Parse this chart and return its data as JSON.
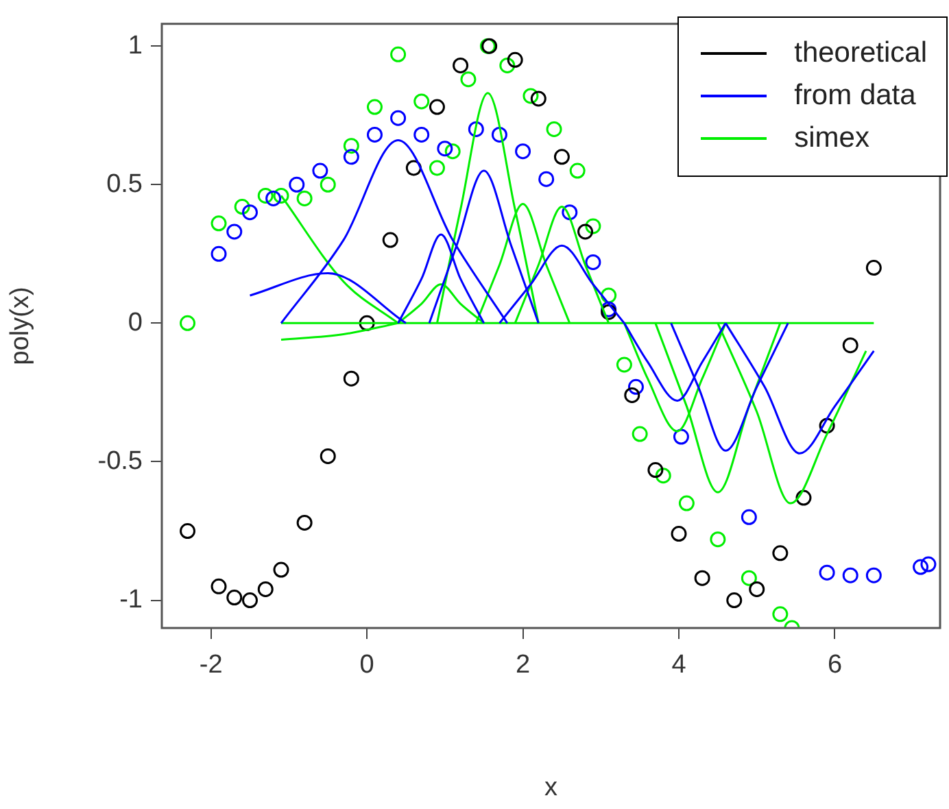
{
  "chart_data": {
    "type": "scatter",
    "xlabel": "x",
    "ylabel": "poly(x)",
    "xlim": [
      -2.63,
      7.35
    ],
    "ylim": [
      -1.1,
      1.08
    ],
    "xticks": [
      -2,
      0,
      2,
      4,
      6
    ],
    "yticks": [
      -1,
      -0.5,
      0,
      0.5,
      1
    ],
    "grid": false,
    "legend": "top right",
    "series": [
      {
        "type": "line",
        "color": "#0000ff",
        "x": [
          -1.5,
          -0.5,
          0.5
        ],
        "values": [
          0.1,
          0.18,
          0
        ]
      },
      {
        "type": "line",
        "color": "#0000ff",
        "x": [
          -1.1,
          -0.3,
          0.4,
          1.1,
          1.8
        ],
        "values": [
          0,
          0.3,
          0.66,
          0.3,
          0
        ]
      },
      {
        "type": "line",
        "color": "#0000ff",
        "x": [
          0.4,
          0.7,
          0.95,
          1.2,
          1.5
        ],
        "values": [
          0,
          0.16,
          0.32,
          0.16,
          0
        ]
      },
      {
        "type": "line",
        "color": "#0000ff",
        "x": [
          0.8,
          1.15,
          1.5,
          1.85,
          2.2
        ],
        "values": [
          0,
          0.28,
          0.55,
          0.28,
          0
        ]
      },
      {
        "type": "line",
        "color": "#0000ff",
        "x": [
          1.7,
          2.1,
          2.5,
          2.9,
          3.3
        ],
        "values": [
          0,
          0.14,
          0.28,
          0.14,
          0
        ]
      },
      {
        "type": "line",
        "color": "#0000ff",
        "x": [
          3.3,
          3.6,
          3.98,
          4.3,
          4.6
        ],
        "values": [
          0,
          -0.14,
          -0.28,
          -0.14,
          0
        ]
      },
      {
        "type": "line",
        "color": "#0000ff",
        "x": [
          3.9,
          4.25,
          4.6,
          5.0,
          5.4
        ],
        "values": [
          0,
          -0.23,
          -0.46,
          -0.23,
          0
        ]
      },
      {
        "type": "line",
        "color": "#0000ff",
        "x": [
          4.6,
          5.1,
          5.55,
          6.0,
          6.5
        ],
        "values": [
          0,
          -0.23,
          -0.47,
          -0.3,
          -0.1
        ]
      },
      {
        "type": "line",
        "color": "#00ee00",
        "x": [
          -1.1,
          6.5
        ],
        "values": [
          0,
          0
        ]
      },
      {
        "type": "line",
        "color": "#00ee00",
        "x": [
          -1.1,
          -0.3,
          0.4
        ],
        "values": [
          0.46,
          0.15,
          0
        ]
      },
      {
        "type": "line",
        "color": "#00ee00",
        "x": [
          -1.1,
          -0.3,
          0.4
        ],
        "values": [
          -0.06,
          -0.04,
          0
        ]
      },
      {
        "type": "line",
        "color": "#00ee00",
        "x": [
          0.4,
          0.7,
          0.95,
          1.2,
          1.5
        ],
        "values": [
          0,
          0.07,
          0.14,
          0.07,
          0
        ]
      },
      {
        "type": "line",
        "color": "#00ee00",
        "x": [
          0.9,
          1.2,
          1.55,
          1.9,
          2.2
        ],
        "values": [
          0,
          0.41,
          0.83,
          0.41,
          0
        ]
      },
      {
        "type": "line",
        "color": "#00ee00",
        "x": [
          1.4,
          1.7,
          2.0,
          2.3,
          2.6
        ],
        "values": [
          0,
          0.21,
          0.43,
          0.21,
          0
        ]
      },
      {
        "type": "line",
        "color": "#00ee00",
        "x": [
          1.9,
          2.2,
          2.5,
          2.8,
          3.1
        ],
        "values": [
          0,
          0.21,
          0.42,
          0.21,
          0
        ]
      },
      {
        "type": "line",
        "color": "#00ee00",
        "x": [
          3.3,
          3.6,
          3.98,
          4.3,
          4.6
        ],
        "values": [
          0,
          -0.2,
          -0.39,
          -0.2,
          0
        ]
      },
      {
        "type": "line",
        "color": "#00ee00",
        "x": [
          3.7,
          4.1,
          4.5,
          4.9,
          5.3
        ],
        "values": [
          0,
          -0.3,
          -0.61,
          -0.3,
          0
        ]
      },
      {
        "type": "line",
        "color": "#00ee00",
        "x": [
          4.5,
          5.0,
          5.43,
          5.9,
          6.4
        ],
        "values": [
          0,
          -0.32,
          -0.65,
          -0.4,
          -0.1
        ]
      },
      {
        "name": "theoretical",
        "color": "#000000",
        "marker": "circle",
        "x": [
          -2.3,
          -1.9,
          -1.7,
          -1.5,
          -1.3,
          -1.1,
          -0.8,
          -0.5,
          -0.2,
          0,
          0.3,
          0.6,
          0.9,
          1.2,
          1.57,
          1.9,
          2.2,
          2.5,
          2.8,
          3.1,
          3.4,
          3.7,
          4.0,
          4.3,
          4.71,
          5.0,
          5.3,
          5.6,
          5.9,
          6.2,
          6.5
        ],
        "values": [
          -0.75,
          -0.95,
          -0.99,
          -1.0,
          -0.96,
          -0.89,
          -0.72,
          -0.48,
          -0.2,
          0,
          0.3,
          0.56,
          0.78,
          0.93,
          1.0,
          0.95,
          0.81,
          0.6,
          0.33,
          0.04,
          -0.26,
          -0.53,
          -0.76,
          -0.92,
          -1.0,
          -0.96,
          -0.83,
          -0.63,
          -0.37,
          -0.08,
          0.2
        ]
      },
      {
        "name": "from data",
        "color": "#0000ff",
        "marker": "circle",
        "x": [
          -1.9,
          -1.7,
          -1.5,
          -1.2,
          -0.9,
          -0.6,
          -0.2,
          0.1,
          0.4,
          0.7,
          1.0,
          1.4,
          1.7,
          2.0,
          2.3,
          2.6,
          2.9,
          3.1,
          3.45,
          4.03,
          4.9,
          5.9,
          6.2,
          6.5,
          7.1,
          7.2
        ],
        "values": [
          0.25,
          0.33,
          0.4,
          0.45,
          0.5,
          0.55,
          0.6,
          0.68,
          0.74,
          0.68,
          0.63,
          0.7,
          0.68,
          0.62,
          0.52,
          0.4,
          0.22,
          0.05,
          -0.23,
          -0.41,
          -0.7,
          -0.9,
          -0.91,
          -0.91,
          -0.88,
          -0.87
        ]
      },
      {
        "name": "simex",
        "color": "#00ee00",
        "marker": "circle",
        "x": [
          -2.3,
          -1.9,
          -1.6,
          -1.3,
          -1.1,
          -0.8,
          -0.5,
          -0.2,
          0.1,
          0.4,
          0.7,
          0.9,
          1.1,
          1.3,
          1.55,
          1.8,
          2.1,
          2.4,
          2.7,
          2.9,
          3.1,
          3.3,
          3.5,
          3.8,
          4.1,
          4.5,
          4.9,
          5.3,
          5.45
        ],
        "values": [
          0,
          0.36,
          0.42,
          0.46,
          0.46,
          0.45,
          0.5,
          0.64,
          0.78,
          0.97,
          0.8,
          0.56,
          0.62,
          0.88,
          1.0,
          0.93,
          0.82,
          0.7,
          0.55,
          0.35,
          0.1,
          -0.15,
          -0.4,
          -0.55,
          -0.65,
          -0.78,
          -0.92,
          -1.05,
          -1.1
        ]
      }
    ]
  }
}
